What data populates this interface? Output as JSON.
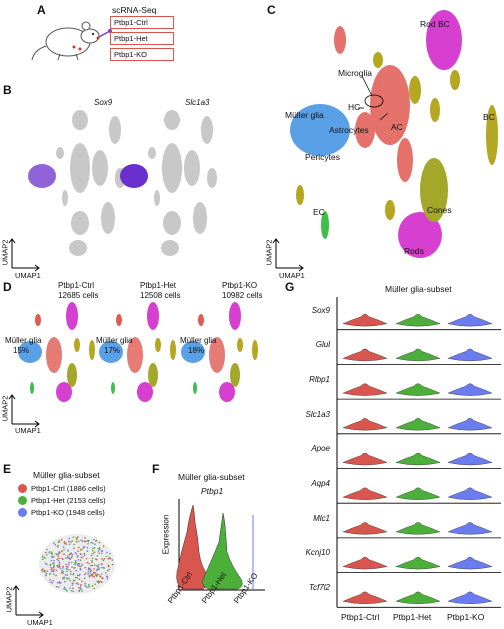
{
  "panels": {
    "A": {
      "label": "A",
      "title": "scRNA-Seq",
      "groups": [
        "Ptbp1-Ctrl",
        "Ptbp1-Het",
        "Ptbp1-KO"
      ]
    },
    "B": {
      "label": "B",
      "genes": [
        "Sox9",
        "Slc1a3"
      ],
      "axis_x": "UMAP1",
      "axis_y": "UMAP2"
    },
    "C": {
      "label": "C",
      "clusters": [
        "Rod BC",
        "Microglia",
        "HC",
        "Müller glia",
        "Astrocytes",
        "AC",
        "BC",
        "Pericytes",
        "EC",
        "Cones",
        "Rods"
      ],
      "axis_x": "UMAP1",
      "axis_y": "UMAP2"
    },
    "D": {
      "label": "D",
      "samples": [
        {
          "name": "Ptbp1-Ctrl",
          "cells": "12685 cells",
          "mg_label": "Müller glia",
          "mg_pct": "15%"
        },
        {
          "name": "Ptbp1-Het",
          "cells": "12508 cells",
          "mg_label": "Müller glia",
          "mg_pct": "17%"
        },
        {
          "name": "Ptbp1-KO",
          "cells": "10982 cells",
          "mg_label": "Müller glia",
          "mg_pct": "18%"
        }
      ],
      "axis_x": "UMAP1",
      "axis_y": "UMAP2"
    },
    "E": {
      "label": "E",
      "title": "Müller glia-subset",
      "legend": [
        {
          "text": "Ptbp1-Ctrl (1886 cells)",
          "color": "#d9564e"
        },
        {
          "text": "Ptbp1-Het (2153 cells)",
          "color": "#4caf3a"
        },
        {
          "text": "Ptbp1-KO (1948 cells)",
          "color": "#6b7cf0"
        }
      ],
      "axis_x": "UMAP1",
      "axis_y": "UMAP2"
    },
    "F": {
      "label": "F",
      "title": "Müller glia-subset",
      "gene": "Ptbp1",
      "ylabel": "Expression",
      "groups": [
        "Ptbp1-Ctrl",
        "Ptbp1-Het",
        "Ptbp1-KO"
      ]
    },
    "G": {
      "label": "G",
      "title": "Müller glia-subset",
      "genes": [
        "Sox9",
        "Glul",
        "Rlbp1",
        "Slc1a3",
        "Apoe",
        "Aqp4",
        "Mlc1",
        "Kcnj10",
        "Tcf7l2"
      ],
      "groups": [
        "Ptbp1-Ctrl",
        "Ptbp1-Het",
        "Ptbp1-KO"
      ]
    }
  },
  "colors": {
    "ctrl": "#d9564e",
    "het": "#4caf3a",
    "ko": "#6b7cf0",
    "muller": "#5aa0e6",
    "rods": "#d63fd0",
    "cones": "#a3a82a",
    "bc": "#b5a722",
    "ac": "#e05a52",
    "ec": "#3fbf4a",
    "grey": "#c4c4c4",
    "purple": "#7a3fd0"
  }
}
